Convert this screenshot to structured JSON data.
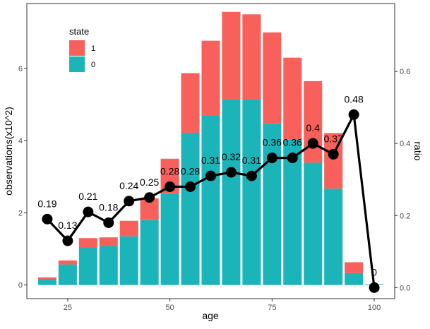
{
  "chart_data": {
    "type": "bar",
    "stacked": true,
    "xlabel": "age",
    "ylabel": "observations(x10^2)",
    "y2label": "ratio",
    "xlim": [
      15,
      105
    ],
    "ylim": [
      -0.3779,
      7.8
    ],
    "y2lim": [
      -0.0306,
      0.7882
    ],
    "x_ticks": [
      25,
      50,
      75,
      100
    ],
    "y_ticks": [
      0,
      2,
      4,
      6
    ],
    "y2_ticks": [
      "0.0",
      "0.2",
      "0.4",
      "0.6"
    ],
    "grid": false,
    "legend": {
      "title": "state",
      "position": "top-left",
      "entries": [
        {
          "label": "1",
          "color": "#f8605c"
        },
        {
          "label": "0",
          "color": "#1bb5b9"
        }
      ]
    },
    "x": [
      20,
      25,
      30,
      35,
      40,
      45,
      50,
      55,
      60,
      65,
      70,
      75,
      80,
      85,
      90,
      95,
      100
    ],
    "series": [
      {
        "name": "0",
        "color": "#1bb5b9",
        "values": [
          0.16,
          0.57,
          1.03,
          1.08,
          1.35,
          1.8,
          2.52,
          4.22,
          4.7,
          5.15,
          5.15,
          4.47,
          4.03,
          3.39,
          2.67,
          0.33,
          0.02
        ]
      },
      {
        "name": "1",
        "color": "#f8605c",
        "values": [
          0.05,
          0.11,
          0.27,
          0.24,
          0.43,
          0.6,
          0.98,
          1.65,
          2.07,
          2.42,
          2.35,
          2.53,
          2.27,
          2.26,
          1.54,
          0.3,
          0.0
        ]
      }
    ],
    "line": {
      "axis": "right",
      "color": "#000000",
      "values": [
        0.19,
        0.13,
        0.21,
        0.18,
        0.24,
        0.25,
        0.28,
        0.28,
        0.31,
        0.32,
        0.31,
        0.36,
        0.36,
        0.4,
        0.37,
        0.48,
        0
      ],
      "labels": [
        "0.19",
        "0.13",
        "0.21",
        "0.18",
        "0.24",
        "0.25",
        "0.28",
        "0.28",
        "0.31",
        "0.32",
        "0.31",
        "0.36",
        "0.36",
        "0.4",
        "0.37",
        "0.48",
        "0"
      ]
    }
  }
}
